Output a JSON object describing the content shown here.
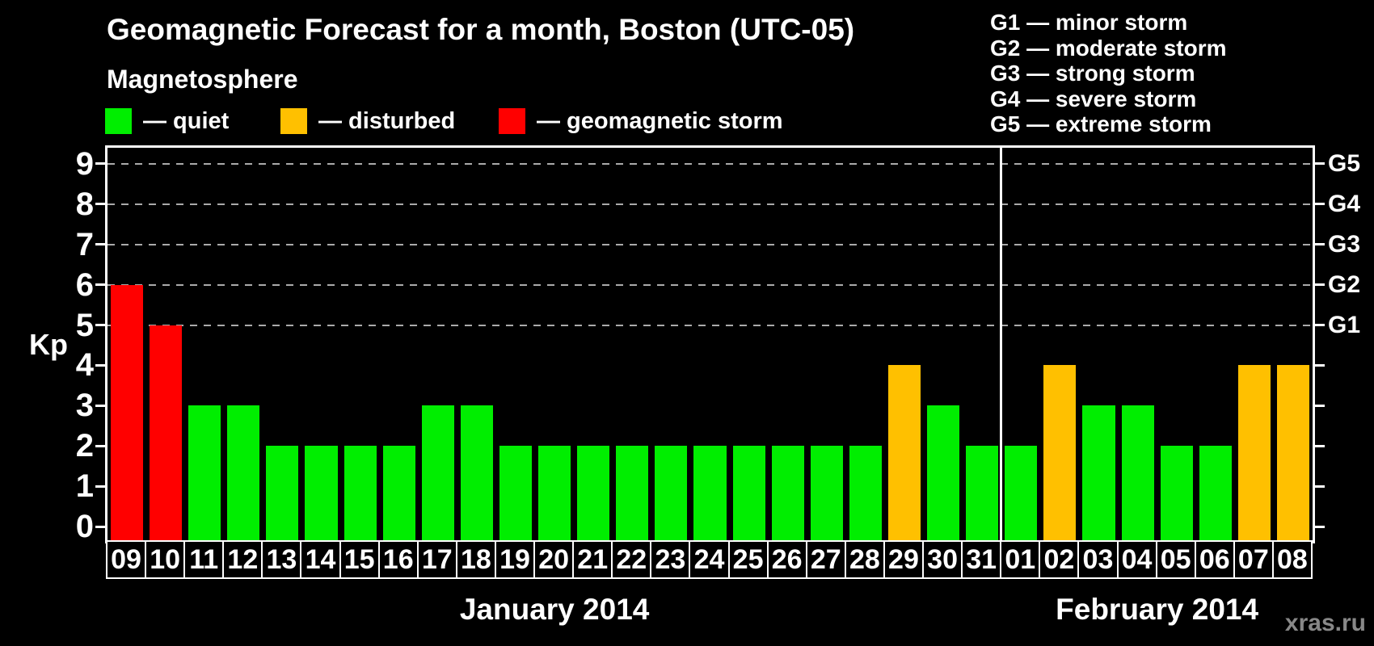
{
  "title": "Geomagnetic Forecast for a month, Boston (UTC-05)",
  "legend": {
    "heading": "Magnetosphere",
    "items": [
      {
        "key": "quiet",
        "label": "— quiet",
        "color": "#00ee00"
      },
      {
        "key": "disturbed",
        "label": "— disturbed",
        "color": "#ffc000"
      },
      {
        "key": "storm",
        "label": "— geomagnetic storm",
        "color": "#ff0000"
      }
    ]
  },
  "g_scale_legend": [
    "G1 — minor storm",
    "G2 — moderate storm",
    "G3 — strong storm",
    "G4 — severe storm",
    "G5 — extreme storm"
  ],
  "watermark": "xras.ru",
  "colors": {
    "quiet": "#00ee00",
    "disturbed": "#ffc000",
    "storm": "#ff0000",
    "background": "#000000",
    "axis": "#ffffff",
    "grid": "#aaaaaa",
    "watermark_text": "#888888"
  },
  "chart_data": {
    "type": "bar",
    "title": "Geomagnetic Forecast for a month, Boston (UTC-05)",
    "xlabel": "",
    "ylabel": "Kp",
    "ylim": [
      0,
      9.4
    ],
    "grid": "dashed horizontal at Kp 5-9",
    "yticks": [
      0,
      1,
      2,
      3,
      4,
      5,
      6,
      7,
      8,
      9
    ],
    "grid_levels": [
      5,
      6,
      7,
      8,
      9
    ],
    "right_axis": [
      {
        "kp": 5,
        "label": "G1"
      },
      {
        "kp": 6,
        "label": "G2"
      },
      {
        "kp": 7,
        "label": "G3"
      },
      {
        "kp": 8,
        "label": "G4"
      },
      {
        "kp": 9,
        "label": "G5"
      }
    ],
    "categories": [
      "09",
      "10",
      "11",
      "12",
      "13",
      "14",
      "15",
      "16",
      "17",
      "18",
      "19",
      "20",
      "21",
      "22",
      "23",
      "24",
      "25",
      "26",
      "27",
      "28",
      "29",
      "30",
      "31",
      "01",
      "02",
      "03",
      "04",
      "05",
      "06",
      "07",
      "08"
    ],
    "values": [
      6,
      5,
      3,
      3,
      2,
      2,
      2,
      2,
      3,
      3,
      2,
      2,
      2,
      2,
      2,
      2,
      2,
      2,
      2,
      2,
      4,
      3,
      2,
      2,
      4,
      3,
      3,
      2,
      2,
      4,
      4
    ],
    "status": [
      "storm",
      "storm",
      "quiet",
      "quiet",
      "quiet",
      "quiet",
      "quiet",
      "quiet",
      "quiet",
      "quiet",
      "quiet",
      "quiet",
      "quiet",
      "quiet",
      "quiet",
      "quiet",
      "quiet",
      "quiet",
      "quiet",
      "quiet",
      "disturbed",
      "quiet",
      "quiet",
      "quiet",
      "disturbed",
      "quiet",
      "quiet",
      "quiet",
      "quiet",
      "disturbed",
      "disturbed"
    ],
    "months": [
      {
        "label": "January 2014",
        "start_index": 0,
        "num_days": 23
      },
      {
        "label": "February 2014",
        "start_index": 23,
        "num_days": 8
      }
    ]
  }
}
